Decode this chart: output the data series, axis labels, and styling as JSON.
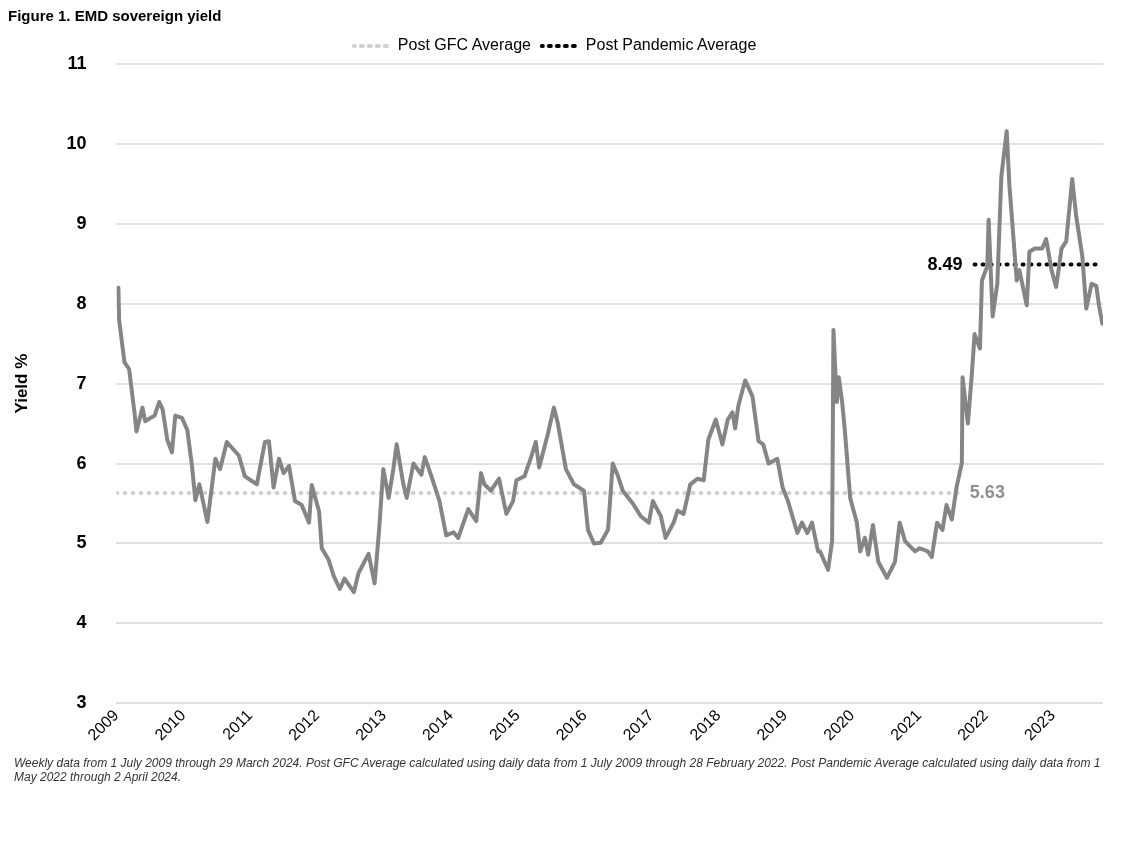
{
  "chart_data": {
    "type": "line",
    "title": "Figure 1. EMD sovereign yield",
    "ylabel": "Yield %",
    "annotations": [
      "Weekly data from 1 July 2009 through 29 March 2024. Post GFC Average calculated using daily data from 1 July 2009 through 28 February 2022. Post Pandemic Average calculated using daily data from 1 May 2022 through 2 April 2024."
    ],
    "xlim": [
      2009,
      2023.75
    ],
    "xticks": [
      2009,
      2010,
      2011,
      2012,
      2013,
      2014,
      2015,
      2016,
      2017,
      2018,
      2019,
      2020,
      2021,
      2022,
      2023
    ],
    "ylim": [
      3,
      11
    ],
    "yticks": [
      3,
      4,
      5,
      6,
      7,
      8,
      9,
      10,
      11
    ],
    "grid": "y",
    "legend": "top",
    "marker": "none",
    "series": [
      {
        "color": "#858585",
        "line_style": "solid",
        "x": [
          2009.03,
          2009.04,
          2009.12,
          2009.19,
          2009.27,
          2009.3,
          2009.39,
          2009.43,
          2009.57,
          2009.64,
          2009.69,
          2009.76,
          2009.83,
          2009.88,
          2009.98,
          2010.06,
          2010.13,
          2010.18,
          2010.24,
          2010.36,
          2010.48,
          2010.55,
          2010.65,
          2010.83,
          2010.92,
          2011.1,
          2011.22,
          2011.28,
          2011.35,
          2011.43,
          2011.5,
          2011.58,
          2011.67,
          2011.77,
          2011.88,
          2011.92,
          2012.03,
          2012.07,
          2012.17,
          2012.25,
          2012.34,
          2012.41,
          2012.55,
          2012.62,
          2012.77,
          2012.86,
          2012.93,
          2012.99,
          2013.07,
          2013.14,
          2013.19,
          2013.29,
          2013.34,
          2013.44,
          2013.56,
          2013.61,
          2013.71,
          2013.83,
          2013.93,
          2014.04,
          2014.11,
          2014.26,
          2014.38,
          2014.45,
          2014.5,
          2014.6,
          2014.72,
          2014.83,
          2014.93,
          2014.98,
          2015.1,
          2015.2,
          2015.27,
          2015.32,
          2015.45,
          2015.54,
          2015.6,
          2015.72,
          2015.84,
          2015.99,
          2016.05,
          2016.14,
          2016.24,
          2016.35,
          2016.42,
          2016.5,
          2016.57,
          2016.72,
          2016.84,
          2016.96,
          2017.02,
          2017.14,
          2017.21,
          2017.33,
          2017.39,
          2017.48,
          2017.58,
          2017.69,
          2017.78,
          2017.85,
          2017.96,
          2018.06,
          2018.14,
          2018.21,
          2018.25,
          2018.3,
          2018.4,
          2018.51,
          2018.6,
          2018.67,
          2018.75,
          2018.88,
          2018.96,
          2019.04,
          2019.18,
          2019.25,
          2019.33,
          2019.4,
          2019.49,
          2019.52,
          2019.64,
          2019.7,
          2019.72,
          2019.77,
          2019.8,
          2019.85,
          2019.89,
          2019.97,
          2020.07,
          2020.12,
          2020.19,
          2020.24,
          2020.31,
          2020.39,
          2020.52,
          2020.64,
          2020.71,
          2020.79,
          2020.94,
          2021.01,
          2021.13,
          2021.19,
          2021.27,
          2021.35,
          2021.41,
          2021.49,
          2021.56,
          2021.64,
          2021.65,
          2021.73,
          2021.79,
          2021.83,
          2021.91,
          2021.94,
          2022.02,
          2022.04,
          2022.1,
          2022.17,
          2022.23,
          2022.31,
          2022.35,
          2022.46,
          2022.5,
          2022.61,
          2022.65,
          2022.73,
          2022.84,
          2022.9,
          2022.98,
          2023.05,
          2023.13,
          2023.2,
          2023.29,
          2023.35,
          2023.44,
          2023.5,
          2023.58,
          2023.65,
          2023.69,
          2023.74
        ],
        "values": [
          8.2,
          7.8,
          7.27,
          7.18,
          6.64,
          6.4,
          6.7,
          6.53,
          6.6,
          6.77,
          6.68,
          6.3,
          6.14,
          6.6,
          6.57,
          6.42,
          5.97,
          5.54,
          5.74,
          5.27,
          6.06,
          5.93,
          6.27,
          6.1,
          5.84,
          5.74,
          6.27,
          6.28,
          5.7,
          6.06,
          5.88,
          5.97,
          5.53,
          5.48,
          5.26,
          5.73,
          5.4,
          4.94,
          4.8,
          4.59,
          4.43,
          4.56,
          4.39,
          4.63,
          4.87,
          4.5,
          5.2,
          5.93,
          5.57,
          5.93,
          6.24,
          5.74,
          5.57,
          6.0,
          5.86,
          6.08,
          5.84,
          5.53,
          5.1,
          5.14,
          5.07,
          5.43,
          5.28,
          5.88,
          5.74,
          5.66,
          5.81,
          5.37,
          5.53,
          5.79,
          5.84,
          6.08,
          6.27,
          5.95,
          6.37,
          6.7,
          6.5,
          5.93,
          5.74,
          5.66,
          5.17,
          5.0,
          5.01,
          5.17,
          6.0,
          5.84,
          5.66,
          5.5,
          5.34,
          5.26,
          5.53,
          5.34,
          5.07,
          5.26,
          5.41,
          5.37,
          5.74,
          5.81,
          5.79,
          6.3,
          6.55,
          6.24,
          6.55,
          6.64,
          6.44,
          6.73,
          7.04,
          6.84,
          6.28,
          6.24,
          6.0,
          6.06,
          5.7,
          5.53,
          5.13,
          5.26,
          5.13,
          5.26,
          4.9,
          4.9,
          4.67,
          5.03,
          7.67,
          6.77,
          7.08,
          6.77,
          6.42,
          5.57,
          5.26,
          4.9,
          5.07,
          4.86,
          5.23,
          4.77,
          4.57,
          4.77,
          5.26,
          5.03,
          4.9,
          4.94,
          4.9,
          4.83,
          5.26,
          5.17,
          5.48,
          5.3,
          5.7,
          6.01,
          7.08,
          6.5,
          7.13,
          7.62,
          7.44,
          8.29,
          8.47,
          9.05,
          7.84,
          8.25,
          9.59,
          10.16,
          9.49,
          8.29,
          8.42,
          7.98,
          8.65,
          8.69,
          8.69,
          8.81,
          8.42,
          8.21,
          8.69,
          8.78,
          9.56,
          9.09,
          8.6,
          7.94,
          8.25,
          8.22,
          7.98,
          7.75
        ]
      },
      {
        "name": "Post GFC Average",
        "color": "#d0d0d0",
        "line_style": "dotted",
        "x": [
          2009,
          2021.58
        ],
        "values": [
          5.63,
          5.63
        ],
        "value_labels": [
          null,
          "5.63"
        ]
      },
      {
        "name": "Post Pandemic Average",
        "color": "#000000",
        "line_style": "dotted",
        "x": [
          2021.83,
          2023.65
        ],
        "values": [
          8.49,
          8.49
        ],
        "value_labels": [
          "8.49",
          null
        ]
      }
    ]
  }
}
